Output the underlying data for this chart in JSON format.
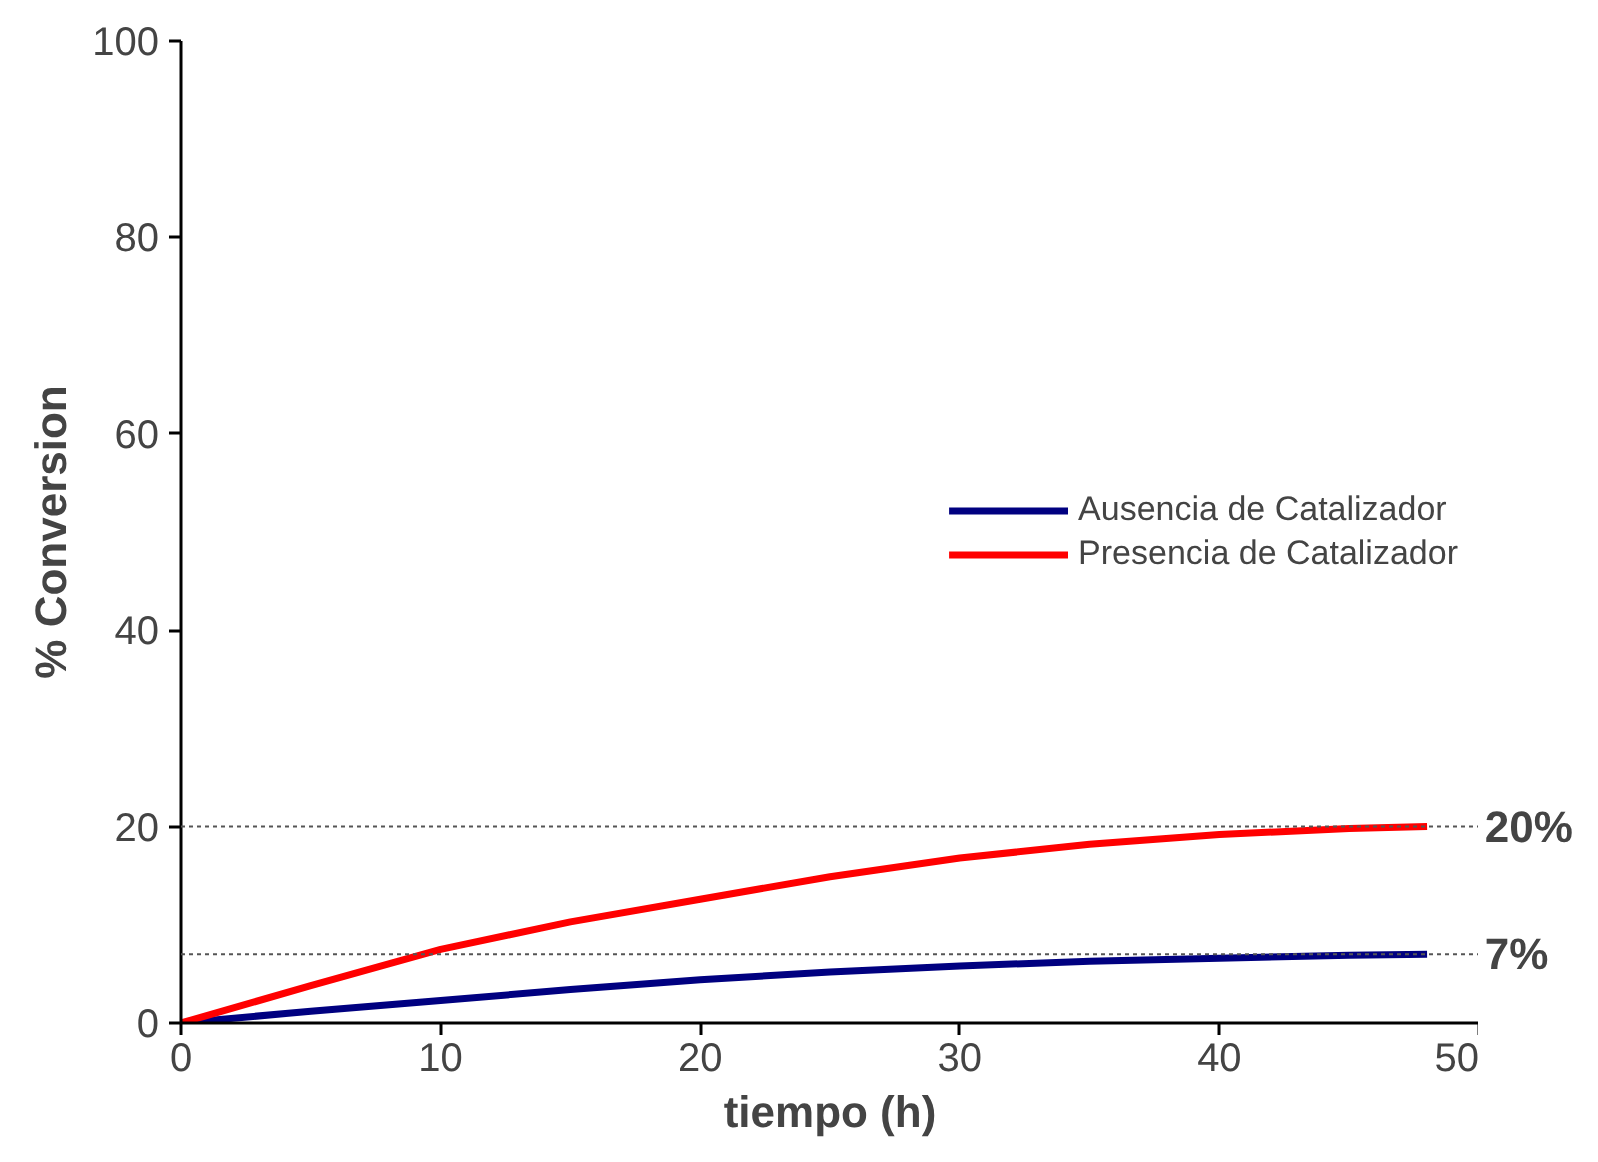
{
  "chart_data": {
    "type": "line",
    "xlabel": "tiempo (h)",
    "ylabel": "% Conversion",
    "xlim": [
      0,
      50
    ],
    "ylim": [
      0,
      100
    ],
    "xticks": [
      0,
      10,
      20,
      30,
      40,
      50
    ],
    "yticks": [
      0,
      20,
      40,
      60,
      80,
      100
    ],
    "grid": false,
    "legend": "right",
    "line_style": "solid",
    "marker": "none",
    "series": [
      {
        "name": "Ausencia de Catalizador",
        "color": "#000080",
        "x": [
          0,
          5,
          10,
          15,
          20,
          25,
          30,
          35,
          40,
          45,
          48
        ],
        "values": [
          0,
          1.2,
          2.3,
          3.4,
          4.4,
          5.2,
          5.8,
          6.3,
          6.6,
          6.9,
          7
        ]
      },
      {
        "name": "Presencia de Catalizador",
        "color": "#ff0000",
        "x": [
          0,
          5,
          10,
          15,
          20,
          25,
          30,
          35,
          40,
          45,
          48
        ],
        "values": [
          0,
          3.8,
          7.5,
          10.3,
          12.6,
          14.9,
          16.8,
          18.2,
          19.2,
          19.8,
          20
        ]
      }
    ],
    "ref_lines": [
      {
        "axis": "y",
        "value": 20,
        "label": "20%",
        "color": "#555555",
        "line_style": "dotted"
      },
      {
        "axis": "y",
        "value": 7,
        "label": "7%",
        "color": "#555555",
        "line_style": "dotted"
      }
    ]
  }
}
